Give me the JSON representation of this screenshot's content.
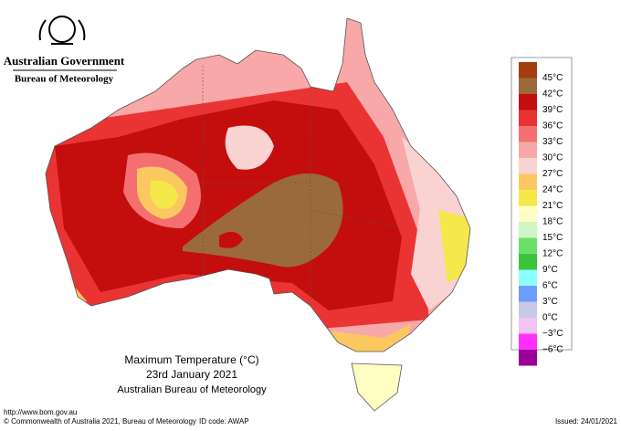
{
  "header": {
    "government": "Australian Government",
    "bureau": "Bureau of Meteorology"
  },
  "title": "Maximum Temperature (°C)",
  "date": "23rd January 2021",
  "source": "Australian Bureau of Meteorology",
  "legend": {
    "top_color": "#a33d0c",
    "items": [
      {
        "label": "45°C",
        "color": "#9b6a3b"
      },
      {
        "label": "42°C",
        "color": "#c40e0e"
      },
      {
        "label": "39°C",
        "color": "#ea3434"
      },
      {
        "label": "36°C",
        "color": "#f47070"
      },
      {
        "label": "33°C",
        "color": "#f8a8a8"
      },
      {
        "label": "30°C",
        "color": "#fbd2d2"
      },
      {
        "label": "27°C",
        "color": "#fbc860"
      },
      {
        "label": "24°C",
        "color": "#f4e84a"
      },
      {
        "label": "21°C",
        "color": "#ffffc4"
      },
      {
        "label": "18°C",
        "color": "#d2f5c6"
      },
      {
        "label": "15°C",
        "color": "#6ae06a"
      },
      {
        "label": "12°C",
        "color": "#3cc43c"
      },
      {
        "label": "9°C",
        "color": "#8cffff"
      },
      {
        "label": "6°C",
        "color": "#6f9cff"
      },
      {
        "label": "3°C",
        "color": "#c8c8e8"
      },
      {
        "label": "0°C",
        "color": "#f2c4f2"
      },
      {
        "label": "−3°C",
        "color": "#ff30ff"
      },
      {
        "label": "−6°C",
        "color": "#9a0099"
      }
    ]
  },
  "footer": {
    "url": "http://www.bom.gov.au",
    "copyright": "© Commonwealth of Australia 2021, Bureau of Meteorology",
    "id_code": "ID code: AWAP",
    "issued": "Issued: 24/01/2021"
  }
}
